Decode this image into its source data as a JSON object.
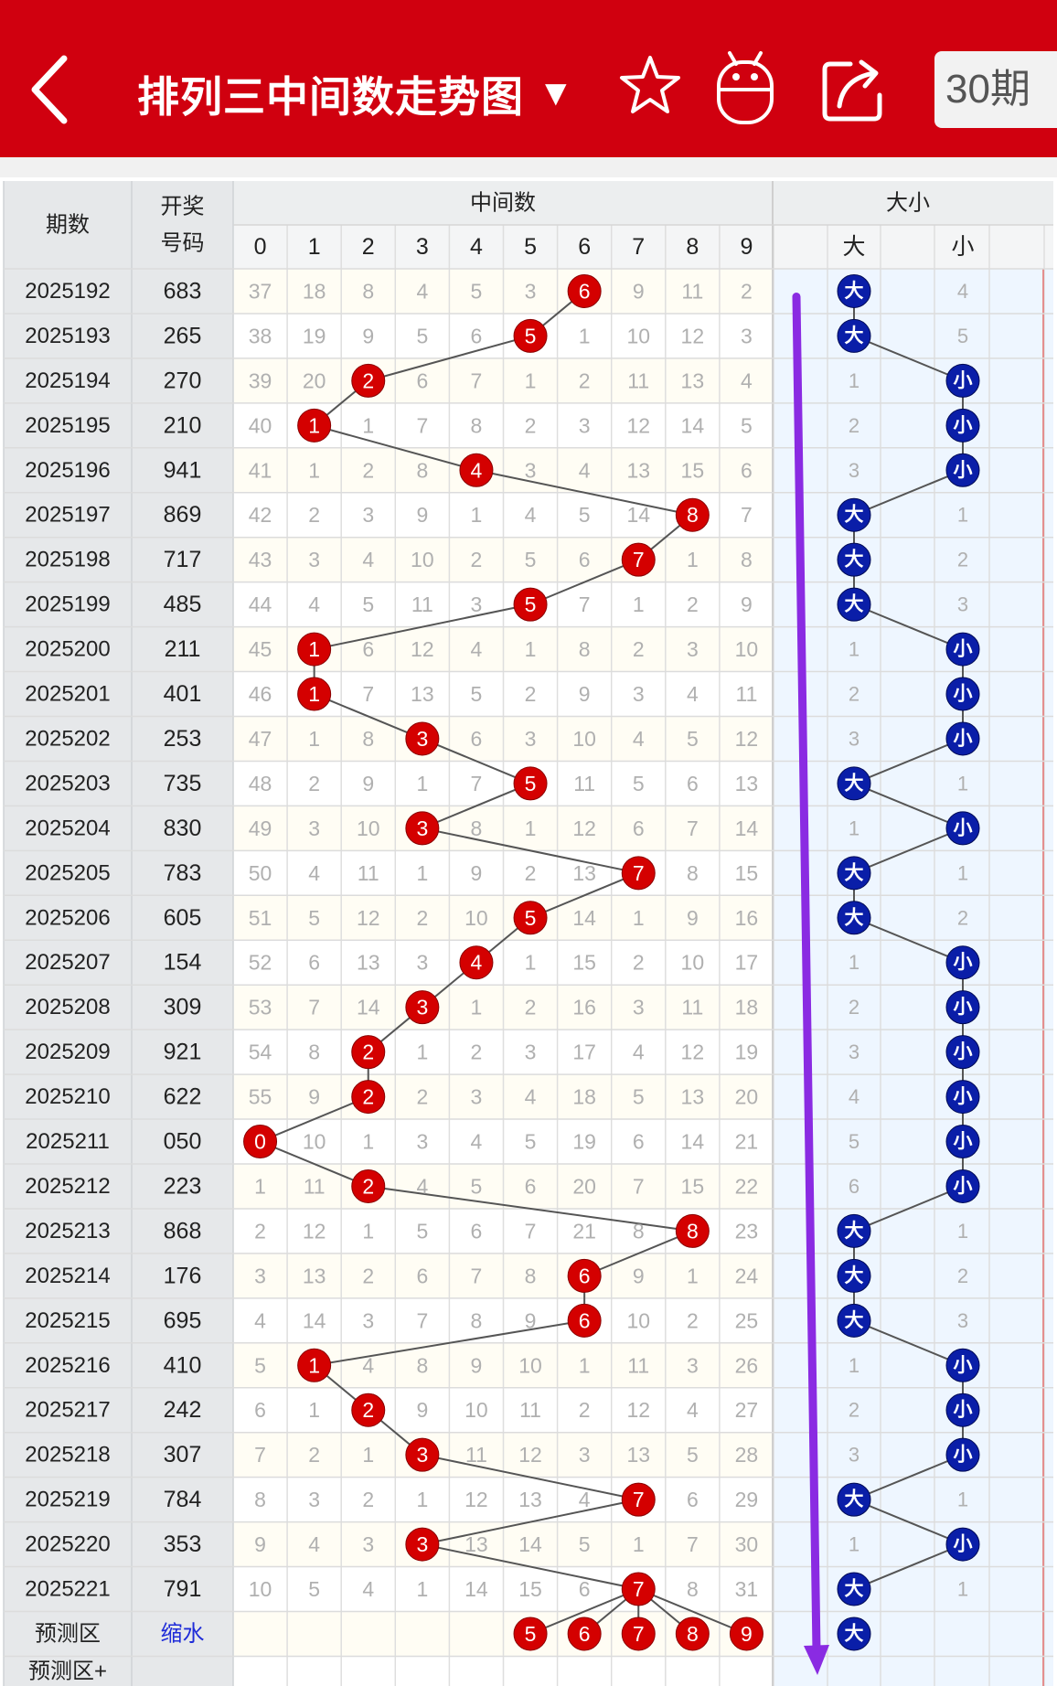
{
  "header": {
    "title": "排列三中间数走势图",
    "caret": "▼",
    "period_select": "30期",
    "icons": [
      "back-icon",
      "star-icon",
      "android-icon",
      "share-icon"
    ]
  },
  "table": {
    "col_period": "期数",
    "col_draw": "开奖号码",
    "group_middle": "中间数",
    "group_bigsmall": "大小",
    "digit_headers": [
      "0",
      "1",
      "2",
      "3",
      "4",
      "5",
      "6",
      "7",
      "8",
      "9"
    ],
    "big_label": "大",
    "small_label": "小",
    "rows": [
      {
        "period": "2025192",
        "draw": "683",
        "cells": [
          "37",
          "18",
          "8",
          "4",
          "5",
          "3",
          "6",
          "9",
          "11",
          "2"
        ],
        "hit": 6,
        "bs": "大",
        "other": "4"
      },
      {
        "period": "2025193",
        "draw": "265",
        "cells": [
          "38",
          "19",
          "9",
          "5",
          "6",
          "5",
          "1",
          "10",
          "12",
          "3"
        ],
        "hit": 5,
        "bs": "大",
        "other": "5"
      },
      {
        "period": "2025194",
        "draw": "270",
        "cells": [
          "39",
          "20",
          "2",
          "6",
          "7",
          "1",
          "2",
          "11",
          "13",
          "4"
        ],
        "hit": 2,
        "bs": "小",
        "other": "1"
      },
      {
        "period": "2025195",
        "draw": "210",
        "cells": [
          "40",
          "1",
          "1",
          "7",
          "8",
          "2",
          "3",
          "12",
          "14",
          "5"
        ],
        "hit": 1,
        "bs": "小",
        "other": "2"
      },
      {
        "period": "2025196",
        "draw": "941",
        "cells": [
          "41",
          "1",
          "2",
          "8",
          "4",
          "3",
          "4",
          "13",
          "15",
          "6"
        ],
        "hit": 4,
        "bs": "小",
        "other": "3"
      },
      {
        "period": "2025197",
        "draw": "869",
        "cells": [
          "42",
          "2",
          "3",
          "9",
          "1",
          "4",
          "5",
          "14",
          "8",
          "7"
        ],
        "hit": 8,
        "bs": "大",
        "other": "1"
      },
      {
        "period": "2025198",
        "draw": "717",
        "cells": [
          "43",
          "3",
          "4",
          "10",
          "2",
          "5",
          "6",
          "7",
          "1",
          "8"
        ],
        "hit": 7,
        "bs": "大",
        "other": "2"
      },
      {
        "period": "2025199",
        "draw": "485",
        "cells": [
          "44",
          "4",
          "5",
          "11",
          "3",
          "5",
          "7",
          "1",
          "2",
          "9"
        ],
        "hit": 5,
        "bs": "大",
        "other": "3"
      },
      {
        "period": "2025200",
        "draw": "211",
        "cells": [
          "45",
          "1",
          "6",
          "12",
          "4",
          "1",
          "8",
          "2",
          "3",
          "10"
        ],
        "hit": 1,
        "bs": "小",
        "other": "1"
      },
      {
        "period": "2025201",
        "draw": "401",
        "cells": [
          "46",
          "1",
          "7",
          "13",
          "5",
          "2",
          "9",
          "3",
          "4",
          "11"
        ],
        "hit": 1,
        "bs": "小",
        "other": "2"
      },
      {
        "period": "2025202",
        "draw": "253",
        "cells": [
          "47",
          "1",
          "8",
          "3",
          "6",
          "3",
          "10",
          "4",
          "5",
          "12"
        ],
        "hit": 3,
        "bs": "小",
        "other": "3"
      },
      {
        "period": "2025203",
        "draw": "735",
        "cells": [
          "48",
          "2",
          "9",
          "1",
          "7",
          "5",
          "11",
          "5",
          "6",
          "13"
        ],
        "hit": 5,
        "bs": "大",
        "other": "1"
      },
      {
        "period": "2025204",
        "draw": "830",
        "cells": [
          "49",
          "3",
          "10",
          "3",
          "8",
          "1",
          "12",
          "6",
          "7",
          "14"
        ],
        "hit": 3,
        "bs": "小",
        "other": "1"
      },
      {
        "period": "2025205",
        "draw": "783",
        "cells": [
          "50",
          "4",
          "11",
          "1",
          "9",
          "2",
          "13",
          "7",
          "8",
          "15"
        ],
        "hit": 7,
        "bs": "大",
        "other": "1"
      },
      {
        "period": "2025206",
        "draw": "605",
        "cells": [
          "51",
          "5",
          "12",
          "2",
          "10",
          "5",
          "14",
          "1",
          "9",
          "16"
        ],
        "hit": 5,
        "bs": "大",
        "other": "2"
      },
      {
        "period": "2025207",
        "draw": "154",
        "cells": [
          "52",
          "6",
          "13",
          "3",
          "4",
          "1",
          "15",
          "2",
          "10",
          "17"
        ],
        "hit": 4,
        "bs": "小",
        "other": "1"
      },
      {
        "period": "2025208",
        "draw": "309",
        "cells": [
          "53",
          "7",
          "14",
          "3",
          "1",
          "2",
          "16",
          "3",
          "11",
          "18"
        ],
        "hit": 3,
        "bs": "小",
        "other": "2"
      },
      {
        "period": "2025209",
        "draw": "921",
        "cells": [
          "54",
          "8",
          "2",
          "1",
          "2",
          "3",
          "17",
          "4",
          "12",
          "19"
        ],
        "hit": 2,
        "bs": "小",
        "other": "3"
      },
      {
        "period": "2025210",
        "draw": "622",
        "cells": [
          "55",
          "9",
          "2",
          "2",
          "3",
          "4",
          "18",
          "5",
          "13",
          "20"
        ],
        "hit": 2,
        "bs": "小",
        "other": "4"
      },
      {
        "period": "2025211",
        "draw": "050",
        "cells": [
          "0",
          "10",
          "1",
          "3",
          "4",
          "5",
          "19",
          "6",
          "14",
          "21"
        ],
        "hit": 0,
        "bs": "小",
        "other": "5"
      },
      {
        "period": "2025212",
        "draw": "223",
        "cells": [
          "1",
          "11",
          "2",
          "4",
          "5",
          "6",
          "20",
          "7",
          "15",
          "22"
        ],
        "hit": 2,
        "bs": "小",
        "other": "6"
      },
      {
        "period": "2025213",
        "draw": "868",
        "cells": [
          "2",
          "12",
          "1",
          "5",
          "6",
          "7",
          "21",
          "8",
          "8",
          "23"
        ],
        "hit": 8,
        "bs": "大",
        "other": "1"
      },
      {
        "period": "2025214",
        "draw": "176",
        "cells": [
          "3",
          "13",
          "2",
          "6",
          "7",
          "8",
          "6",
          "9",
          "1",
          "24"
        ],
        "hit": 6,
        "bs": "大",
        "other": "2"
      },
      {
        "period": "2025215",
        "draw": "695",
        "cells": [
          "4",
          "14",
          "3",
          "7",
          "8",
          "9",
          "6",
          "10",
          "2",
          "25"
        ],
        "hit": 6,
        "bs": "大",
        "other": "3"
      },
      {
        "period": "2025216",
        "draw": "410",
        "cells": [
          "5",
          "1",
          "4",
          "8",
          "9",
          "10",
          "1",
          "11",
          "3",
          "26"
        ],
        "hit": 1,
        "bs": "小",
        "other": "1"
      },
      {
        "period": "2025217",
        "draw": "242",
        "cells": [
          "6",
          "1",
          "2",
          "9",
          "10",
          "11",
          "2",
          "12",
          "4",
          "27"
        ],
        "hit": 2,
        "bs": "小",
        "other": "2"
      },
      {
        "period": "2025218",
        "draw": "307",
        "cells": [
          "7",
          "2",
          "1",
          "3",
          "11",
          "12",
          "3",
          "13",
          "5",
          "28"
        ],
        "hit": 3,
        "bs": "小",
        "other": "3"
      },
      {
        "period": "2025219",
        "draw": "784",
        "cells": [
          "8",
          "3",
          "2",
          "1",
          "12",
          "13",
          "4",
          "7",
          "6",
          "29"
        ],
        "hit": 7,
        "bs": "大",
        "other": "1"
      },
      {
        "period": "2025220",
        "draw": "353",
        "cells": [
          "9",
          "4",
          "3",
          "3",
          "13",
          "14",
          "5",
          "1",
          "7",
          "30"
        ],
        "hit": 3,
        "bs": "小",
        "other": "1"
      },
      {
        "period": "2025221",
        "draw": "791",
        "cells": [
          "10",
          "5",
          "4",
          "1",
          "14",
          "15",
          "6",
          "7",
          "8",
          "31"
        ],
        "hit": 7,
        "bs": "大",
        "other": "1"
      }
    ],
    "prediction": {
      "label": "预测区",
      "tag": "缩水",
      "digits": [
        "5",
        "6",
        "7",
        "8",
        "9"
      ],
      "bs": "大"
    },
    "prediction_plus_label": "预测区+"
  },
  "colors": {
    "header_bg": "#d0000f",
    "hit_ball": "#d40000",
    "bs_ball": "#0a1ea8",
    "trend_arrow": "#8a2be2",
    "odd_row": "#fffdf4",
    "even_row": "#ffffff",
    "bs_bg": "#eef6ff",
    "header_bg_cells": "#e6e8ea",
    "miss_text": "#b0b0b0"
  }
}
